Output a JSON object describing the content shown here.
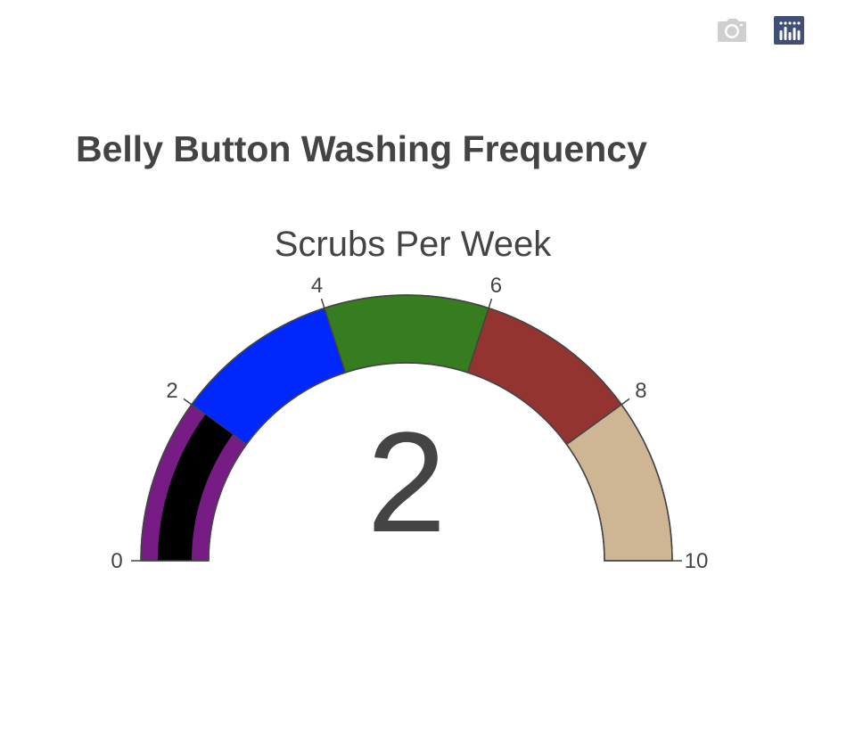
{
  "modebar": {
    "buttons": [
      {
        "name": "camera-icon",
        "title": "Download plot as a png"
      },
      {
        "name": "plotly-logo-icon",
        "title": "Produced with Plotly"
      }
    ]
  },
  "colors": {
    "text": "#444444",
    "bar": "#000000",
    "border": "#444444"
  },
  "chart_data": {
    "type": "gauge",
    "title": "Belly Button Washing Frequency",
    "gauge_title": "Scrubs Per Week",
    "value": 2,
    "value_label": "2",
    "range": [
      0,
      10
    ],
    "ticks": [
      {
        "value": 0,
        "label": "0"
      },
      {
        "value": 2,
        "label": "2"
      },
      {
        "value": 4,
        "label": "4"
      },
      {
        "value": 6,
        "label": "6"
      },
      {
        "value": 8,
        "label": "8"
      },
      {
        "value": 10,
        "label": "10"
      }
    ],
    "steps": [
      {
        "range": [
          0,
          2
        ],
        "color": "#771c84"
      },
      {
        "range": [
          2,
          4
        ],
        "color": "#0027fb"
      },
      {
        "range": [
          4,
          6
        ],
        "color": "#367d20"
      },
      {
        "range": [
          6,
          8
        ],
        "color": "#943430"
      },
      {
        "range": [
          8,
          10
        ],
        "color": "#ceb594"
      }
    ]
  }
}
